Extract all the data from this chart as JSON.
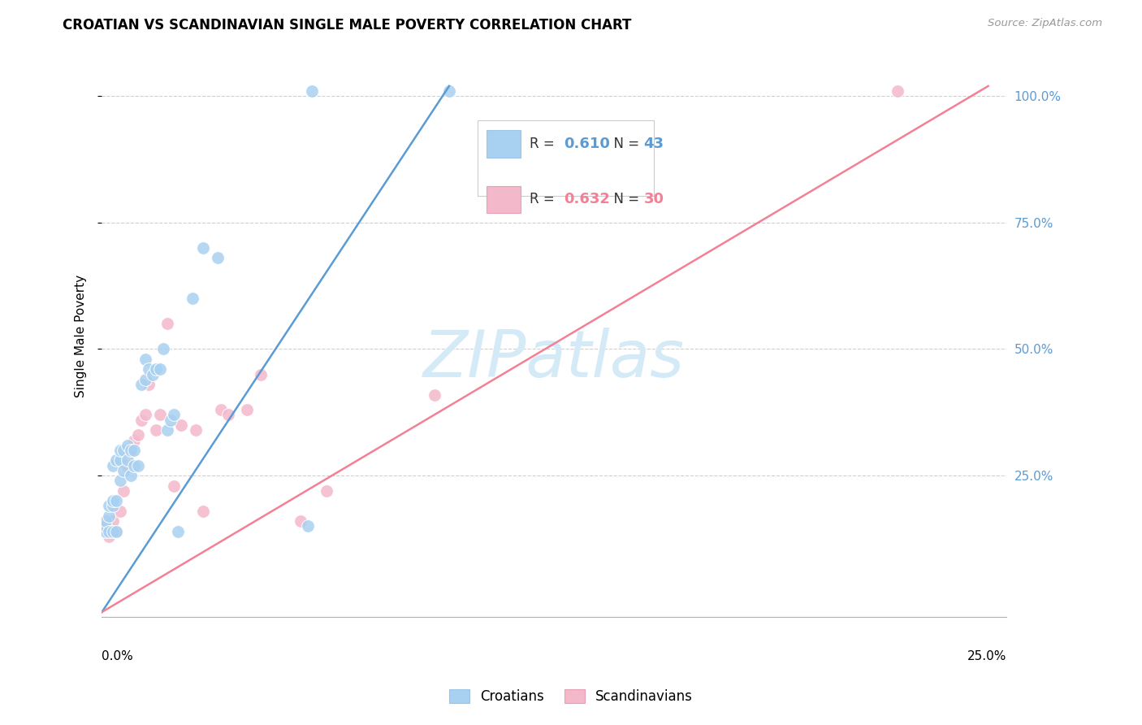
{
  "title": "CROATIAN VS SCANDINAVIAN SINGLE MALE POVERTY CORRELATION CHART",
  "source": "Source: ZipAtlas.com",
  "ylabel": "Single Male Poverty",
  "croatians_label": "Croatians",
  "scandinavians_label": "Scandinavians",
  "blue_color": "#a8d0f0",
  "pink_color": "#f4b8cb",
  "blue_line_color": "#5b9bd5",
  "pink_line_color": "#f48095",
  "watermark_color": "#d5eaf7",
  "right_tick_color": "#5b9bd5",
  "xlim": [
    0.0,
    0.25
  ],
  "ylim": [
    -0.03,
    1.08
  ],
  "blue_line": [
    [
      0.0,
      -0.02
    ],
    [
      0.096,
      1.02
    ]
  ],
  "pink_line": [
    [
      0.0,
      -0.02
    ],
    [
      0.245,
      1.02
    ]
  ],
  "blue_x": [
    0.001,
    0.001,
    0.001,
    0.002,
    0.002,
    0.002,
    0.003,
    0.003,
    0.003,
    0.003,
    0.004,
    0.004,
    0.004,
    0.005,
    0.005,
    0.005,
    0.006,
    0.006,
    0.007,
    0.007,
    0.008,
    0.008,
    0.009,
    0.009,
    0.01,
    0.011,
    0.012,
    0.012,
    0.013,
    0.014,
    0.015,
    0.016,
    0.017,
    0.018,
    0.019,
    0.02,
    0.021,
    0.025,
    0.028,
    0.032,
    0.057,
    0.058,
    0.096
  ],
  "blue_y": [
    0.14,
    0.15,
    0.16,
    0.14,
    0.17,
    0.19,
    0.14,
    0.19,
    0.2,
    0.27,
    0.14,
    0.2,
    0.28,
    0.24,
    0.28,
    0.3,
    0.26,
    0.3,
    0.28,
    0.31,
    0.25,
    0.3,
    0.27,
    0.3,
    0.27,
    0.43,
    0.44,
    0.48,
    0.46,
    0.45,
    0.46,
    0.46,
    0.5,
    0.34,
    0.36,
    0.37,
    0.14,
    0.6,
    0.7,
    0.68,
    0.15,
    1.01,
    1.01
  ],
  "pink_x": [
    0.001,
    0.001,
    0.002,
    0.002,
    0.003,
    0.004,
    0.005,
    0.006,
    0.007,
    0.008,
    0.009,
    0.01,
    0.011,
    0.012,
    0.013,
    0.015,
    0.016,
    0.018,
    0.02,
    0.022,
    0.026,
    0.028,
    0.033,
    0.035,
    0.04,
    0.044,
    0.055,
    0.062,
    0.092,
    0.22
  ],
  "pink_y": [
    0.14,
    0.15,
    0.13,
    0.15,
    0.16,
    0.14,
    0.18,
    0.22,
    0.27,
    0.3,
    0.32,
    0.33,
    0.36,
    0.37,
    0.43,
    0.34,
    0.37,
    0.55,
    0.23,
    0.35,
    0.34,
    0.18,
    0.38,
    0.37,
    0.38,
    0.45,
    0.16,
    0.22,
    0.41,
    1.01
  ]
}
